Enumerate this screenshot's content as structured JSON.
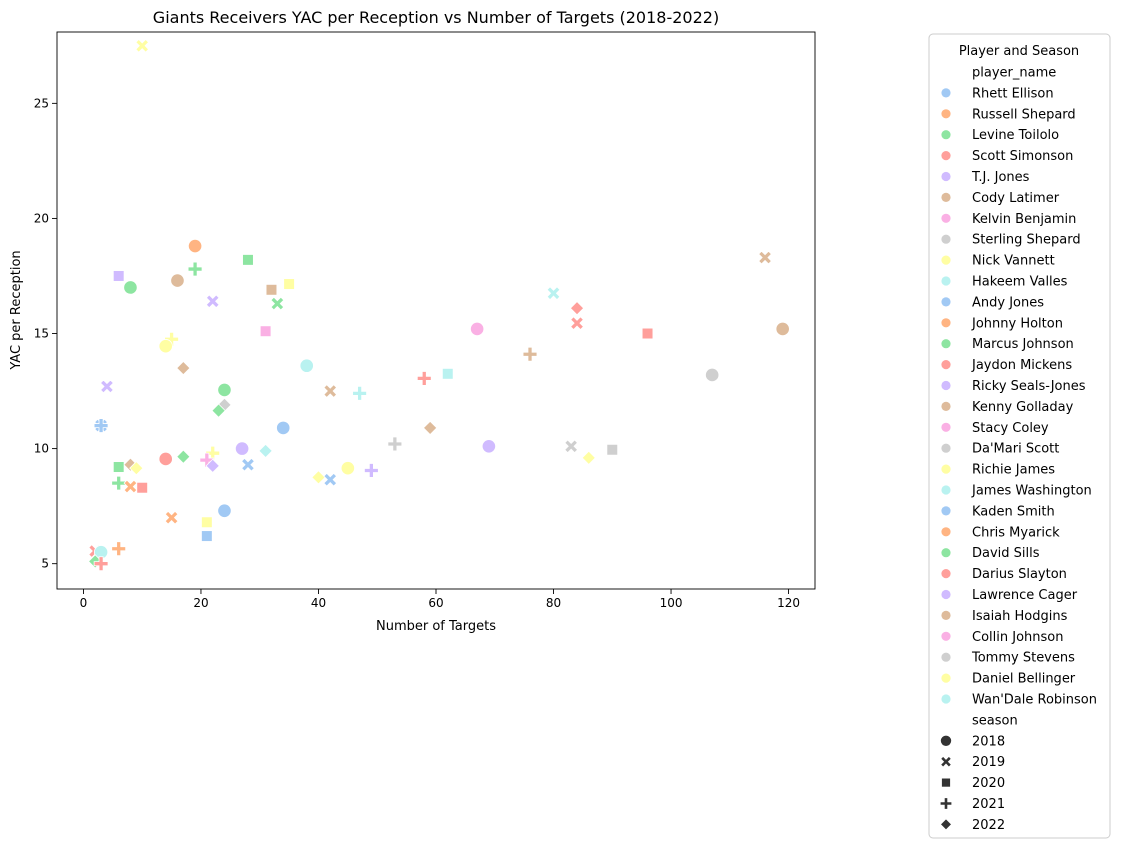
{
  "chart_data": {
    "type": "scatter",
    "title": "Giants Receivers YAC per Reception vs Number of Targets (2018-2022)",
    "xlabel": "Number of Targets",
    "ylabel": "YAC per Reception",
    "xlim": [
      -4.5,
      124.5
    ],
    "ylim": [
      3.9,
      28.1
    ],
    "xticks": [
      0,
      20,
      40,
      60,
      80,
      100,
      120
    ],
    "yticks": [
      5,
      10,
      15,
      20,
      25
    ],
    "grid": false,
    "legend": {
      "title": "Player and Season",
      "placement": "outside-right",
      "hue_heading": "player_name",
      "style_heading": "season",
      "players": [
        {
          "name": "Rhett Ellison",
          "color": "#a1c9f4"
        },
        {
          "name": "Russell Shepard",
          "color": "#ffb482"
        },
        {
          "name": "Levine Toilolo",
          "color": "#8de5a1"
        },
        {
          "name": "Scott Simonson",
          "color": "#ff9f9b"
        },
        {
          "name": "T.J. Jones",
          "color": "#d0bbff"
        },
        {
          "name": "Cody Latimer",
          "color": "#debb9b"
        },
        {
          "name": "Kelvin Benjamin",
          "color": "#fab0e4"
        },
        {
          "name": "Sterling Shepard",
          "color": "#cfcfcf"
        },
        {
          "name": "Nick Vannett",
          "color": "#fffea3"
        },
        {
          "name": "Hakeem Valles",
          "color": "#b9f2f0"
        },
        {
          "name": "Andy Jones",
          "color": "#a1c9f4"
        },
        {
          "name": "Johnny Holton",
          "color": "#ffb482"
        },
        {
          "name": "Marcus Johnson",
          "color": "#8de5a1"
        },
        {
          "name": "Jaydon Mickens",
          "color": "#ff9f9b"
        },
        {
          "name": "Ricky Seals-Jones",
          "color": "#d0bbff"
        },
        {
          "name": "Kenny Golladay",
          "color": "#debb9b"
        },
        {
          "name": "Stacy Coley",
          "color": "#fab0e4"
        },
        {
          "name": "Da'Mari Scott",
          "color": "#cfcfcf"
        },
        {
          "name": "Richie James",
          "color": "#fffea3"
        },
        {
          "name": "James Washington",
          "color": "#b9f2f0"
        },
        {
          "name": "Kaden Smith",
          "color": "#a1c9f4"
        },
        {
          "name": "Chris Myarick",
          "color": "#ffb482"
        },
        {
          "name": "David Sills",
          "color": "#8de5a1"
        },
        {
          "name": "Darius Slayton",
          "color": "#ff9f9b"
        },
        {
          "name": "Lawrence Cager",
          "color": "#d0bbff"
        },
        {
          "name": "Isaiah Hodgins",
          "color": "#debb9b"
        },
        {
          "name": "Collin Johnson",
          "color": "#fab0e4"
        },
        {
          "name": "Tommy Stevens",
          "color": "#cfcfcf"
        },
        {
          "name": "Daniel Bellinger",
          "color": "#fffea3"
        },
        {
          "name": "Wan'Dale Robinson",
          "color": "#b9f2f0"
        }
      ],
      "seasons": [
        {
          "label": "2018",
          "marker": "circle"
        },
        {
          "label": "2019",
          "marker": "x"
        },
        {
          "label": "2020",
          "marker": "square"
        },
        {
          "label": "2021",
          "marker": "plus"
        },
        {
          "label": "2022",
          "marker": "diamond"
        }
      ],
      "marker_color": "#333333"
    },
    "points": [
      {
        "x": 10,
        "y": 27.5,
        "color": "#fffea3",
        "marker": "x"
      },
      {
        "x": 19,
        "y": 18.8,
        "color": "#ffb482",
        "marker": "circle"
      },
      {
        "x": 28,
        "y": 18.2,
        "color": "#8de5a1",
        "marker": "square"
      },
      {
        "x": 19,
        "y": 17.8,
        "color": "#8de5a1",
        "marker": "plus"
      },
      {
        "x": 6,
        "y": 17.5,
        "color": "#d0bbff",
        "marker": "square"
      },
      {
        "x": 16,
        "y": 17.3,
        "color": "#debb9b",
        "marker": "circle"
      },
      {
        "x": 35,
        "y": 17.15,
        "color": "#fffea3",
        "marker": "square"
      },
      {
        "x": 8,
        "y": 17.0,
        "color": "#8de5a1",
        "marker": "circle"
      },
      {
        "x": 32,
        "y": 16.9,
        "color": "#debb9b",
        "marker": "square"
      },
      {
        "x": 22,
        "y": 16.4,
        "color": "#d0bbff",
        "marker": "x"
      },
      {
        "x": 33,
        "y": 16.3,
        "color": "#8de5a1",
        "marker": "x"
      },
      {
        "x": 116,
        "y": 18.3,
        "color": "#debb9b",
        "marker": "x"
      },
      {
        "x": 80,
        "y": 16.75,
        "color": "#b9f2f0",
        "marker": "x"
      },
      {
        "x": 84,
        "y": 16.1,
        "color": "#ff9f9b",
        "marker": "diamond"
      },
      {
        "x": 84,
        "y": 15.45,
        "color": "#ff9f9b",
        "marker": "x"
      },
      {
        "x": 31,
        "y": 15.1,
        "color": "#fab0e4",
        "marker": "square"
      },
      {
        "x": 67,
        "y": 15.2,
        "color": "#fab0e4",
        "marker": "circle"
      },
      {
        "x": 96,
        "y": 15.0,
        "color": "#ff9f9b",
        "marker": "square"
      },
      {
        "x": 119,
        "y": 15.2,
        "color": "#debb9b",
        "marker": "circle"
      },
      {
        "x": 15,
        "y": 14.75,
        "color": "#fffea3",
        "marker": "plus"
      },
      {
        "x": 14,
        "y": 14.45,
        "color": "#fffea3",
        "marker": "circle"
      },
      {
        "x": 76,
        "y": 14.1,
        "color": "#debb9b",
        "marker": "plus"
      },
      {
        "x": 38,
        "y": 13.6,
        "color": "#b9f2f0",
        "marker": "circle"
      },
      {
        "x": 17,
        "y": 13.5,
        "color": "#debb9b",
        "marker": "diamond"
      },
      {
        "x": 62,
        "y": 13.25,
        "color": "#b9f2f0",
        "marker": "square"
      },
      {
        "x": 107,
        "y": 13.2,
        "color": "#cfcfcf",
        "marker": "circle"
      },
      {
        "x": 58,
        "y": 13.05,
        "color": "#ff9f9b",
        "marker": "plus"
      },
      {
        "x": 4,
        "y": 12.7,
        "color": "#d0bbff",
        "marker": "x"
      },
      {
        "x": 24,
        "y": 12.55,
        "color": "#8de5a1",
        "marker": "circle"
      },
      {
        "x": 42,
        "y": 12.5,
        "color": "#debb9b",
        "marker": "x"
      },
      {
        "x": 47,
        "y": 12.4,
        "color": "#b9f2f0",
        "marker": "plus"
      },
      {
        "x": 24,
        "y": 11.9,
        "color": "#cfcfcf",
        "marker": "diamond"
      },
      {
        "x": 23,
        "y": 11.65,
        "color": "#8de5a1",
        "marker": "diamond"
      },
      {
        "x": 3,
        "y": 11.0,
        "color": "#a1c9f4",
        "marker": "x"
      },
      {
        "x": 3,
        "y": 11.0,
        "color": "#a1c9f4",
        "marker": "plus"
      },
      {
        "x": 34,
        "y": 10.9,
        "color": "#a1c9f4",
        "marker": "circle"
      },
      {
        "x": 59,
        "y": 10.9,
        "color": "#debb9b",
        "marker": "diamond"
      },
      {
        "x": 53,
        "y": 10.2,
        "color": "#cfcfcf",
        "marker": "plus"
      },
      {
        "x": 69,
        "y": 10.1,
        "color": "#d0bbff",
        "marker": "circle"
      },
      {
        "x": 83,
        "y": 10.1,
        "color": "#cfcfcf",
        "marker": "x"
      },
      {
        "x": 27,
        "y": 10.0,
        "color": "#d0bbff",
        "marker": "circle"
      },
      {
        "x": 90,
        "y": 9.95,
        "color": "#cfcfcf",
        "marker": "square"
      },
      {
        "x": 31,
        "y": 9.9,
        "color": "#b9f2f0",
        "marker": "diamond"
      },
      {
        "x": 22,
        "y": 9.8,
        "color": "#fffea3",
        "marker": "plus"
      },
      {
        "x": 17,
        "y": 9.65,
        "color": "#8de5a1",
        "marker": "diamond"
      },
      {
        "x": 86,
        "y": 9.6,
        "color": "#fffea3",
        "marker": "diamond"
      },
      {
        "x": 14,
        "y": 9.55,
        "color": "#ff9f9b",
        "marker": "circle"
      },
      {
        "x": 21,
        "y": 9.5,
        "color": "#fab0e4",
        "marker": "plus"
      },
      {
        "x": 8,
        "y": 9.3,
        "color": "#debb9b",
        "marker": "diamond"
      },
      {
        "x": 28,
        "y": 9.3,
        "color": "#a1c9f4",
        "marker": "x"
      },
      {
        "x": 22,
        "y": 9.25,
        "color": "#d0bbff",
        "marker": "diamond"
      },
      {
        "x": 6,
        "y": 9.2,
        "color": "#8de5a1",
        "marker": "square"
      },
      {
        "x": 9,
        "y": 9.15,
        "color": "#fffea3",
        "marker": "diamond"
      },
      {
        "x": 45,
        "y": 9.15,
        "color": "#fffea3",
        "marker": "circle"
      },
      {
        "x": 49,
        "y": 9.05,
        "color": "#d0bbff",
        "marker": "plus"
      },
      {
        "x": 40,
        "y": 8.75,
        "color": "#fffea3",
        "marker": "diamond"
      },
      {
        "x": 42,
        "y": 8.65,
        "color": "#a1c9f4",
        "marker": "x"
      },
      {
        "x": 6,
        "y": 8.5,
        "color": "#8de5a1",
        "marker": "plus"
      },
      {
        "x": 8,
        "y": 8.35,
        "color": "#ffb482",
        "marker": "x"
      },
      {
        "x": 10,
        "y": 8.3,
        "color": "#ff9f9b",
        "marker": "square"
      },
      {
        "x": 24,
        "y": 7.3,
        "color": "#a1c9f4",
        "marker": "circle"
      },
      {
        "x": 15,
        "y": 7.0,
        "color": "#ffb482",
        "marker": "x"
      },
      {
        "x": 21,
        "y": 6.8,
        "color": "#fffea3",
        "marker": "square"
      },
      {
        "x": 21,
        "y": 6.2,
        "color": "#a1c9f4",
        "marker": "square"
      },
      {
        "x": 6,
        "y": 5.65,
        "color": "#ffb482",
        "marker": "plus"
      },
      {
        "x": 2,
        "y": 5.55,
        "color": "#ff9f9b",
        "marker": "x"
      },
      {
        "x": 3,
        "y": 5.5,
        "color": "#b9f2f0",
        "marker": "circle"
      },
      {
        "x": 2,
        "y": 5.1,
        "color": "#8de5a1",
        "marker": "diamond"
      },
      {
        "x": 3,
        "y": 5.0,
        "color": "#ff9f9b",
        "marker": "plus"
      }
    ]
  }
}
